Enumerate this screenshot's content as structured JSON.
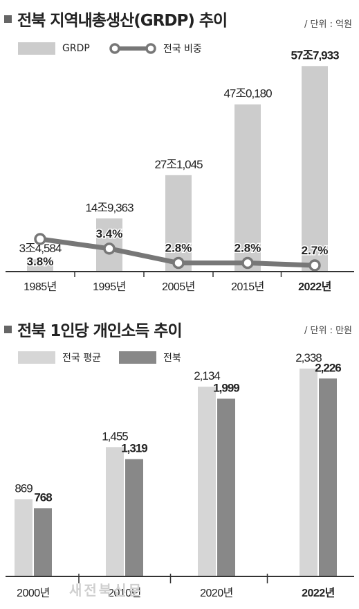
{
  "charts": [
    {
      "title": "전북 지역내총생산(GRDP) 추이",
      "unit": "/ 단위 : 억원",
      "legend": {
        "bar_label": "GRDP",
        "line_label": "전국 비중"
      },
      "colors": {
        "bar": "#cccccc",
        "line": "#777777",
        "marker_fill": "#ffffff"
      }
    },
    {
      "title": "전북 1인당 개인소득 추이",
      "unit": "/ 단위 : 만원",
      "legend": {
        "national_label": "전국 평균",
        "jeonbuk_label": "전북"
      },
      "colors": {
        "national": "#d6d6d6",
        "jeonbuk": "#888888"
      }
    }
  ],
  "watermark": "새전북신문",
  "chart_data": [
    {
      "type": "bar",
      "title": "전북 지역내총생산(GRDP) 추이",
      "xlabel": "",
      "ylabel": "",
      "categories": [
        "1985년",
        "1995년",
        "2005년",
        "2015년",
        "2022년"
      ],
      "series": [
        {
          "name": "GRDP",
          "type": "bar",
          "values": [
            34584,
            149363,
            271045,
            470180,
            577933
          ],
          "labels": [
            "3조4,584",
            "14조9,363",
            "27조1,045",
            "47조0,180",
            "57조7,933"
          ]
        },
        {
          "name": "전국 비중",
          "type": "line",
          "values": [
            3.8,
            3.4,
            2.8,
            2.8,
            2.7
          ],
          "labels": [
            "3.8%",
            "3.4%",
            "2.8%",
            "2.8%",
            "2.7%"
          ]
        }
      ],
      "ylim": [
        0,
        600000
      ],
      "legend": "top-left",
      "grid": false
    },
    {
      "type": "bar",
      "title": "전북 1인당 개인소득 추이",
      "xlabel": "",
      "ylabel": "",
      "categories": [
        "2000년",
        "2010년",
        "2020년",
        "2022년"
      ],
      "series": [
        {
          "name": "전국 평균",
          "values": [
            869,
            1455,
            2134,
            2338
          ],
          "labels": [
            "869",
            "1,455",
            "2,134",
            "2,338"
          ]
        },
        {
          "name": "전북",
          "values": [
            768,
            1319,
            1999,
            2226
          ],
          "labels": [
            "768",
            "1,319",
            "1,999",
            "2,226"
          ]
        }
      ],
      "ylim": [
        0,
        2400
      ],
      "legend": "top-left",
      "grid": false
    }
  ]
}
